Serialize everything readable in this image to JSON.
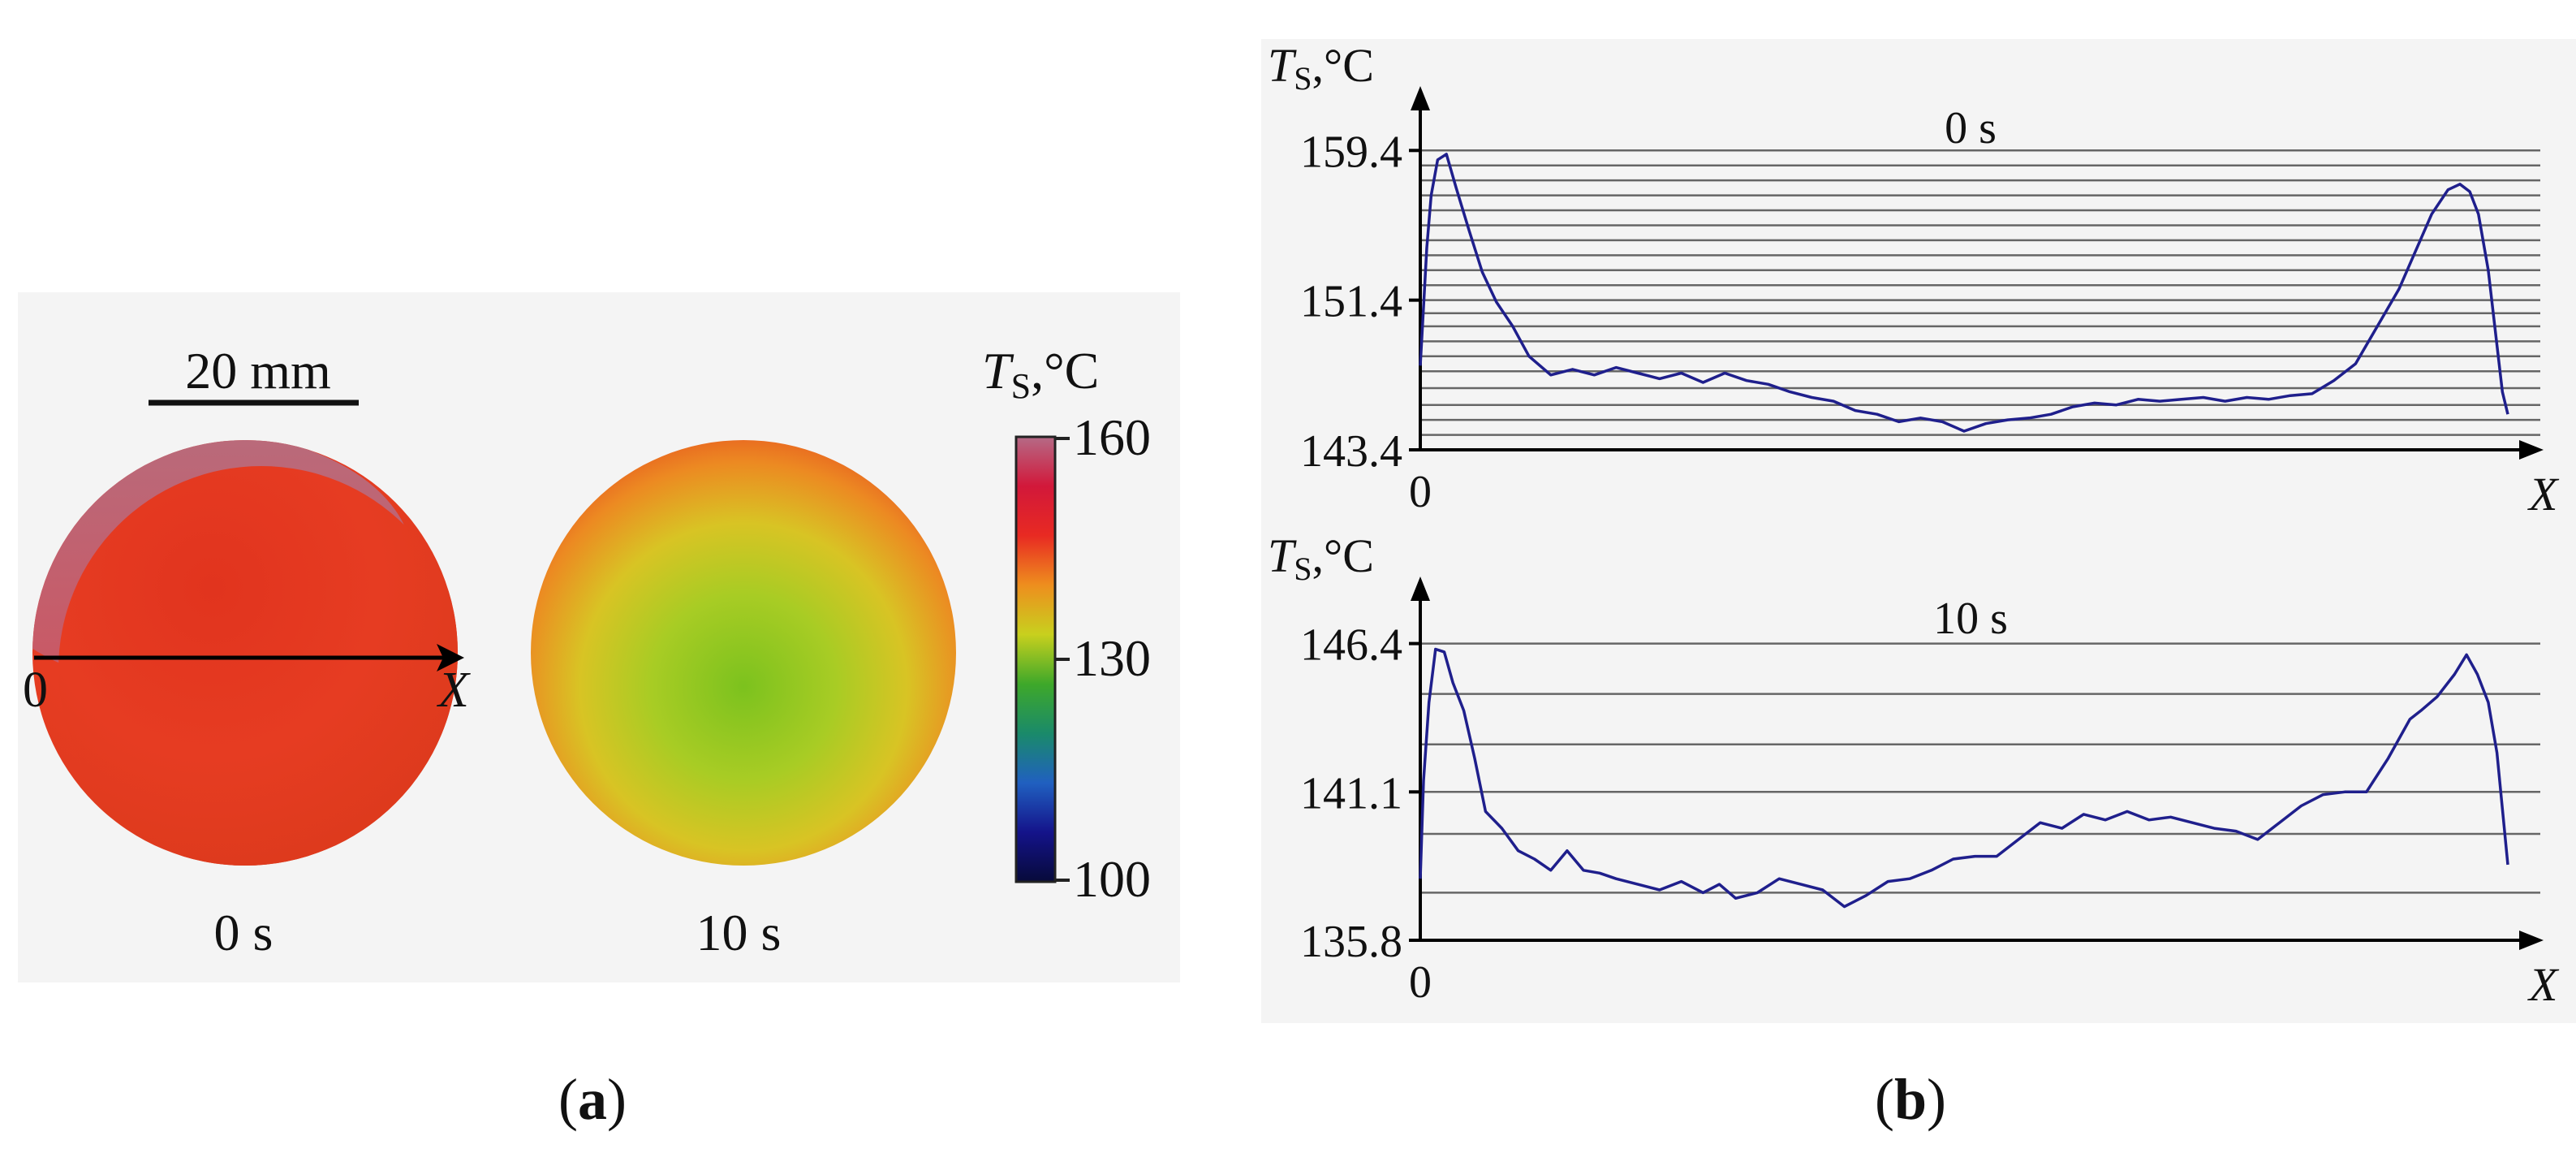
{
  "panel_a": {
    "label_letter": "a",
    "scale_bar_label": "20 mm",
    "axis_origin": "0",
    "axis_name": "X",
    "thermograms": [
      {
        "time_label": "0 s"
      },
      {
        "time_label": "10 s"
      }
    ],
    "colorbar": {
      "title_main": "T",
      "title_sub": "S",
      "title_unit": ",°C",
      "ticks": [
        "160",
        "130",
        "100"
      ],
      "colors": [
        "#b56a86",
        "#d2183a",
        "#e82a22",
        "#ee8e1e",
        "#c8d01e",
        "#3ea82a",
        "#1a8a6a",
        "#2060c0",
        "#14138a",
        "#070a3a"
      ]
    }
  },
  "panel_b": {
    "label_letter": "b",
    "line_color": "#1f1f8c",
    "chart_data": [
      {
        "type": "line",
        "title": "0 s",
        "ylabel_main": "T",
        "ylabel_sub": "S",
        "ylabel_unit": ",°C",
        "xlabel": "X",
        "x_tick": "0",
        "ytick_labels": [
          "159.4",
          "151.4",
          "143.4"
        ],
        "ytick_values": [
          159.4,
          151.4,
          143.4
        ],
        "ylim": [
          143.4,
          161.8
        ],
        "xlim": [
          0,
          100
        ],
        "gridlines": [
          144.2,
          145.0,
          145.8,
          146.7,
          147.6,
          148.4,
          149.2,
          150.0,
          150.7,
          151.4,
          152.2,
          153.0,
          153.8,
          154.6,
          155.4,
          156.2,
          157.0,
          157.8,
          158.6,
          159.4
        ],
        "series": [
          {
            "x": [
              0,
              0.2,
              0.6,
              1,
              1.6,
              2.4,
              3.3,
              4.5,
              5.7,
              7,
              8.5,
              10,
              12,
              14,
              16,
              18,
              20,
              22,
              24,
              26,
              28,
              30,
              32,
              34,
              36,
              38,
              40,
              42,
              44,
              46,
              48,
              50,
              52,
              54,
              56,
              58,
              60,
              62,
              64,
              66,
              68,
              70,
              72,
              74,
              76,
              78,
              80,
              82,
              84,
              86,
              88,
              90,
              91.5,
              93,
              94.5,
              95.6,
              96.5,
              97.3,
              98.2,
              99,
              99.5,
              100
            ],
            "values": [
              147.9,
              150.0,
              154.2,
              157.0,
              158.9,
              159.2,
              157.4,
              155.1,
              152.9,
              151.3,
              150.0,
              148.4,
              147.4,
              147.7,
              147.4,
              147.8,
              147.5,
              147.2,
              147.5,
              147.0,
              147.5,
              147.1,
              146.9,
              146.5,
              146.2,
              146.0,
              145.5,
              145.3,
              144.9,
              145.1,
              144.9,
              144.4,
              144.8,
              145.0,
              145.1,
              145.3,
              145.7,
              145.9,
              145.8,
              146.1,
              146.0,
              146.1,
              146.2,
              146.0,
              146.2,
              146.1,
              146.3,
              146.4,
              147.1,
              148.0,
              150.0,
              152.0,
              154.0,
              156.0,
              157.3,
              157.6,
              157.2,
              156.0,
              153.0,
              149.0,
              146.5,
              145.3
            ]
          }
        ]
      },
      {
        "type": "line",
        "title": "10 s",
        "ylabel_main": "T",
        "ylabel_sub": "S",
        "ylabel_unit": ",°C",
        "xlabel": "X",
        "x_tick": "0",
        "ytick_labels": [
          "146.4",
          "141.1",
          "135.8"
        ],
        "ytick_values": [
          146.4,
          141.1,
          135.8
        ],
        "ylim": [
          135.8,
          148.1
        ],
        "xlim": [
          0,
          100
        ],
        "gridlines": [
          137.5,
          139.6,
          141.1,
          142.8,
          144.6,
          146.4
        ],
        "series": [
          {
            "x": [
              0,
              0.3,
              0.8,
              1.4,
              2.2,
              3,
              4,
              5,
              6,
              7.5,
              9,
              10.5,
              12,
              13.5,
              15,
              16.5,
              18,
              20,
              22,
              24,
              26,
              27.5,
              29,
              31,
              33,
              35,
              37,
              39,
              41,
              43,
              45,
              47,
              49,
              51,
              53,
              55,
              57,
              59,
              61,
              63,
              65,
              67,
              69,
              71,
              73,
              75,
              77,
              79,
              81,
              83,
              85,
              87,
              89,
              91,
              92,
              93.5,
              95.1,
              96.2,
              97.2,
              98.2,
              99,
              99.5,
              100
            ],
            "values": [
              138.0,
              141.5,
              144.3,
              146.2,
              146.1,
              145.0,
              144.0,
              142.3,
              140.4,
              139.8,
              139.0,
              138.7,
              138.3,
              139.0,
              138.3,
              138.2,
              138.0,
              137.8,
              137.6,
              137.9,
              137.5,
              137.8,
              137.3,
              137.5,
              138.0,
              137.8,
              137.6,
              137.0,
              137.4,
              137.9,
              138.0,
              138.3,
              138.7,
              138.8,
              138.8,
              139.4,
              140.0,
              139.8,
              140.3,
              140.1,
              140.4,
              140.1,
              140.2,
              140.0,
              139.8,
              139.7,
              139.4,
              140.0,
              140.6,
              141.0,
              141.1,
              141.1,
              142.3,
              143.7,
              144.0,
              144.5,
              145.3,
              146.0,
              145.3,
              144.3,
              142.5,
              140.5,
              138.5
            ]
          }
        ]
      }
    ]
  }
}
